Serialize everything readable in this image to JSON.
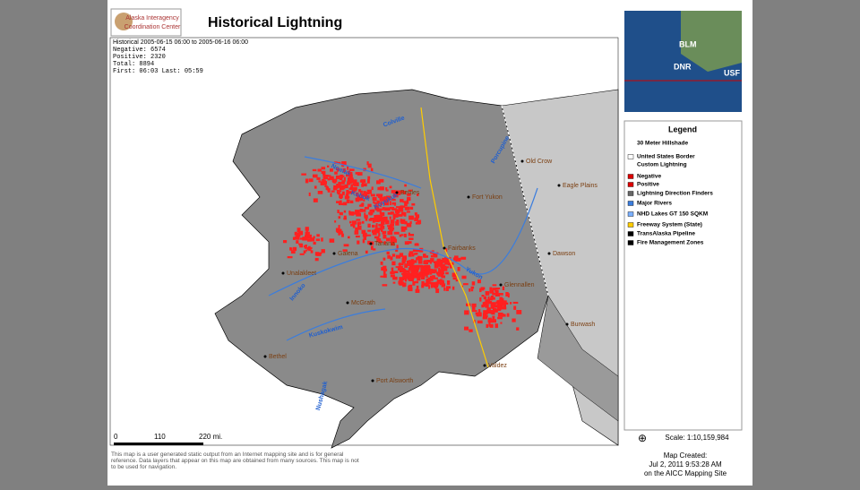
{
  "header": {
    "logo_text": [
      "Alaska Interagency",
      "Coordination Center"
    ],
    "title": "Historical Lightning"
  },
  "info": {
    "period": "Historical 2005-06-15 06:00 to 2005-06-16 06:00",
    "lines": [
      "Negative:   6574",
      "Positive:   2320",
      "Total:   8894",
      "First: 06:03  Last: 05:59"
    ]
  },
  "map": {
    "places": [
      "Old Crow",
      "Eagle Plains",
      "Fort Yukon",
      "Bettles",
      "Tanana",
      "Galena",
      "Fairbanks",
      "Dawson",
      "Unalakleet",
      "McGrath",
      "Glennallen",
      "Burwash",
      "Bethel",
      "Valdez",
      "Port Alsworth"
    ],
    "rivers": [
      "Noatak",
      "Colville",
      "Kobuk",
      "Koyukuk",
      "Porcupine",
      "Yukon",
      "Innoko",
      "Kuskokwim",
      "Nushagak"
    ]
  },
  "scale_bar": {
    "labels": [
      "0",
      "110",
      "220 mi."
    ]
  },
  "disclaimer": "This map is a user generated static output from an Internet mapping site and is for general reference. Data layers that appear on this map are obtained from many sources. This map is not to be used for navigation.",
  "inset": {
    "labels": [
      "BLM",
      "DNR",
      "USF"
    ]
  },
  "legend": {
    "title": "Legend",
    "items": [
      "30 Meter Hillshade",
      "United States Border",
      "Custom Lightning",
      "Negative",
      "Positive",
      "Lightning Direction Finders",
      "Major Rivers",
      "NHD Lakes GT 150 SQKM",
      "Freeway System (State)",
      "TransAlaska Pipeline",
      "Fire Management Zones"
    ]
  },
  "scale": "Scale: 1:10,159,984",
  "created": [
    "Map Created:",
    "Jul 2, 2011 9:53:28 AM",
    "on the AICC Mapping Site"
  ]
}
